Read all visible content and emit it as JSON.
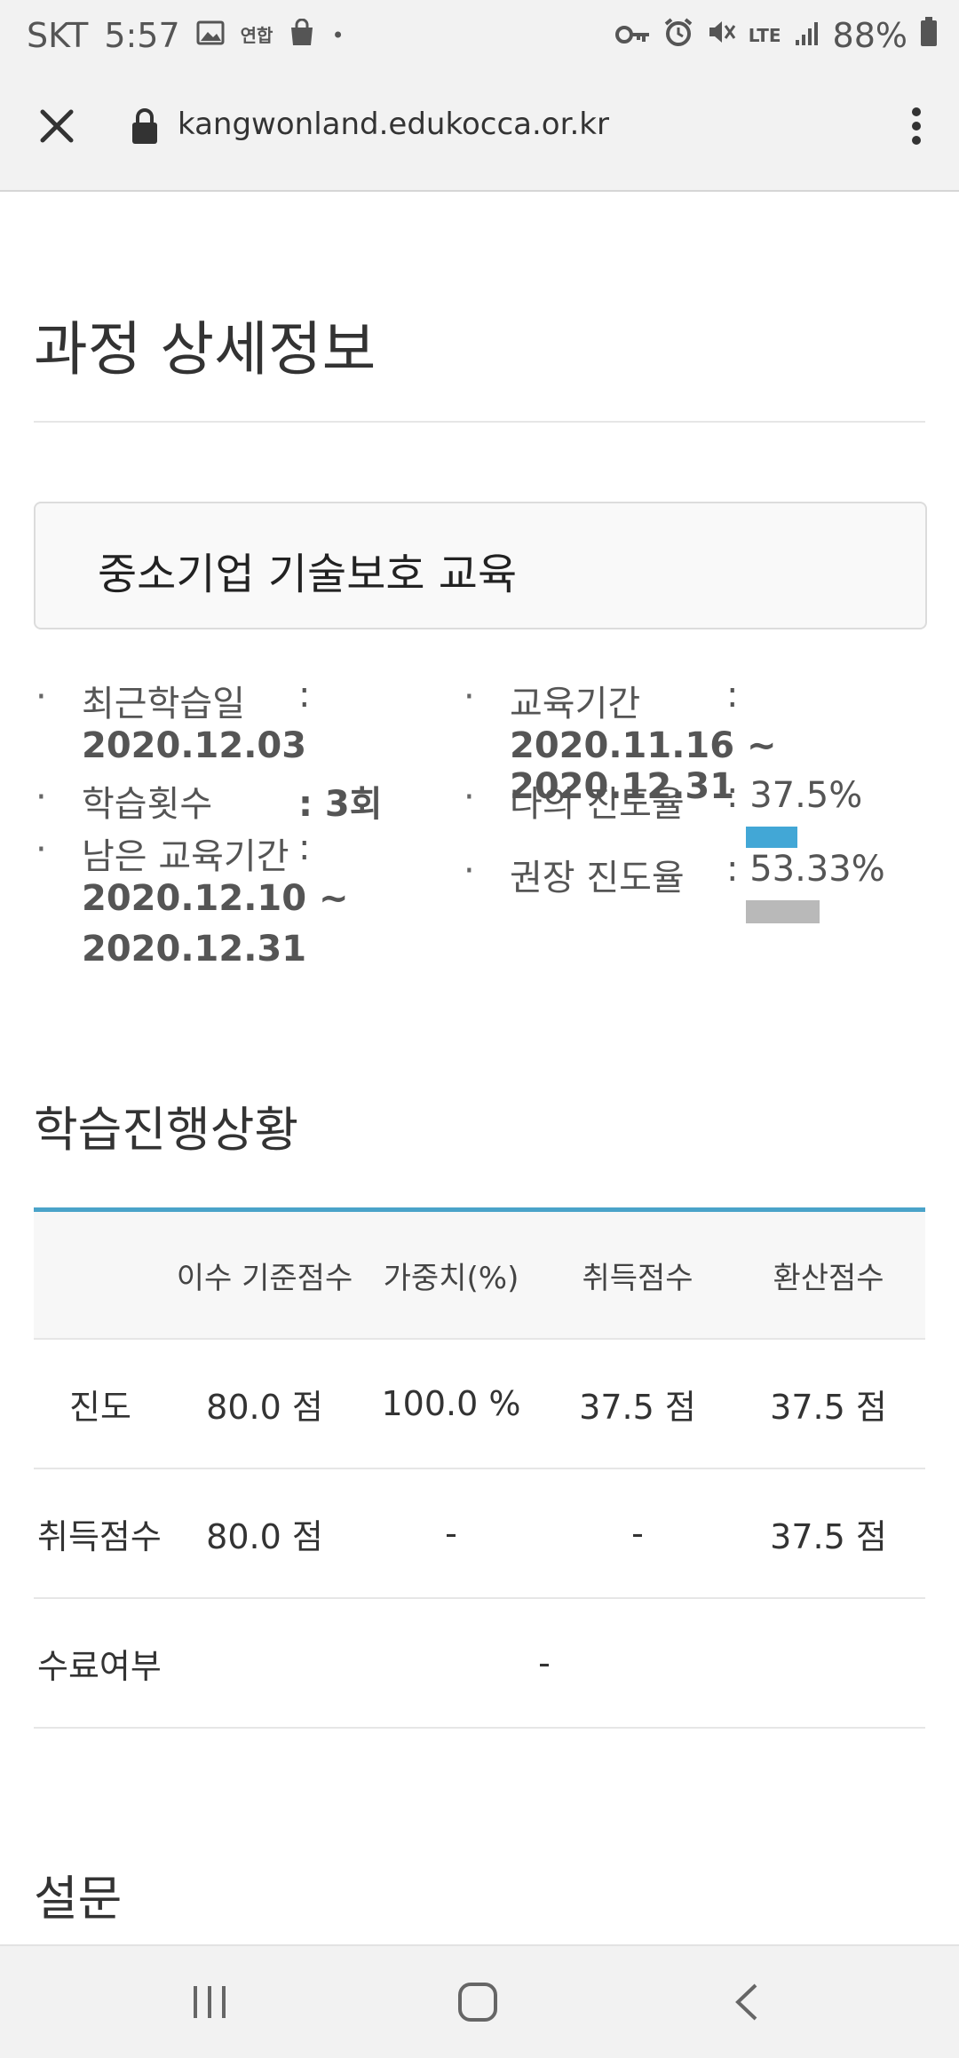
{
  "status_bar": {
    "carrier": "SKT",
    "time": "5:57",
    "notif_news": "연합",
    "dot": "•",
    "lte_label": "LTE",
    "battery": "88%"
  },
  "browser": {
    "url": "kangwonland.edukocca.or.kr"
  },
  "page": {
    "title": "과정 상세정보",
    "course_name": "중소기업 기술보호 교육"
  },
  "info": {
    "bullet": "·",
    "colon": ":",
    "recent_label": "최근학습일",
    "recent_value": "2020.12.03",
    "count_label": "학습횟수",
    "count_value": ": 3회",
    "remain_label": "남은 교육기간",
    "remain_value_1": "2020.12.10 ~",
    "remain_value_2": "2020.12.31",
    "period_label": "교육기간",
    "period_value": "2020.11.16 ~ 2020.12.31",
    "my_progress_label": "나의 진도율",
    "my_progress_value": ": 37.5%",
    "my_progress_fraction": 0.375,
    "rec_progress_label": "권장 진도율",
    "rec_progress_value": ": 53.33%",
    "rec_progress_fraction": 0.5333,
    "colors": {
      "my_bar": "#42a7d6",
      "rec_bar": "#b9b9b9"
    }
  },
  "progress_section": {
    "title": "학습진행상황",
    "accent": "#4aa3c9",
    "headers": [
      "",
      "이수 기준점수",
      "가중치(%)",
      "취득점수",
      "환산점수"
    ],
    "rows": [
      [
        "진도",
        "80.0 점",
        "100.0 %",
        "37.5 점",
        "37.5 점"
      ],
      [
        "취득점수",
        "80.0 점",
        "-",
        "-",
        "37.5 점"
      ]
    ],
    "completion": {
      "label": "수료여부",
      "value": "-"
    }
  },
  "survey": {
    "title": "설문"
  }
}
